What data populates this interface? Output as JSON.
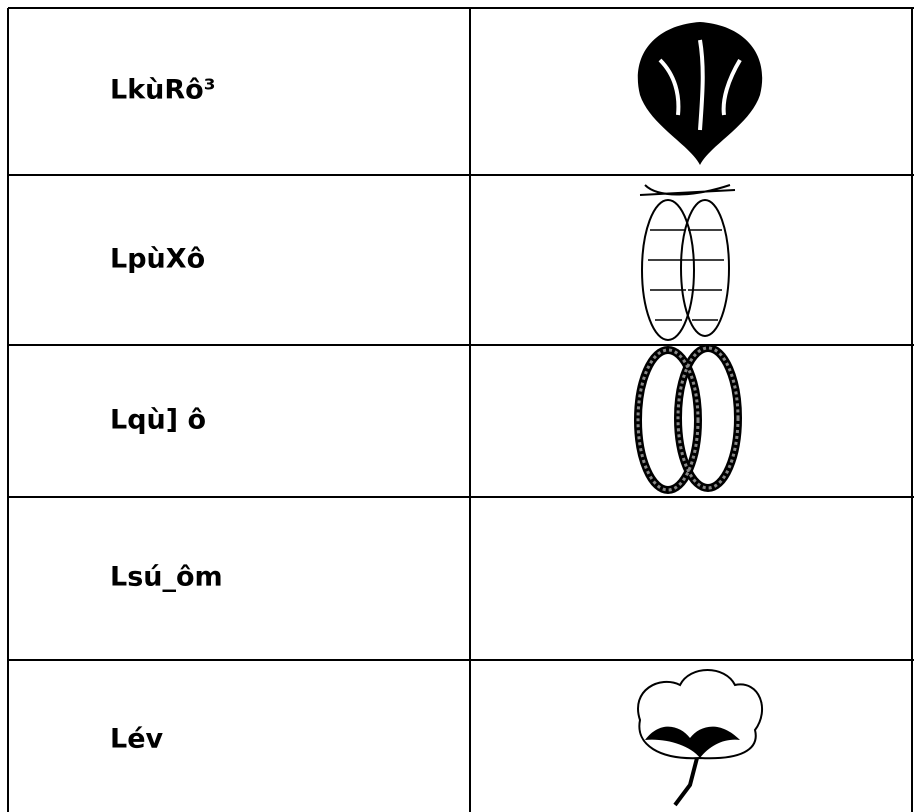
{
  "table": {
    "rows": [
      "LkùRô³",
      "LpùXô",
      "Lqù] ô",
      "Lsú_ôm",
      "Lév"
    ]
  }
}
